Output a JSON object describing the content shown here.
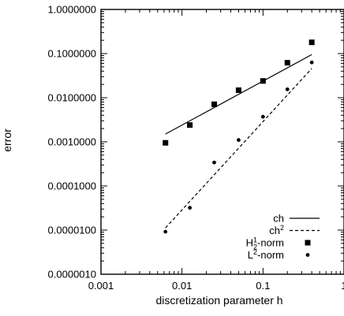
{
  "chart_data": {
    "type": "scatter",
    "title": "",
    "xlabel": "discretization parameter h",
    "ylabel": "error",
    "xscale": "log",
    "yscale": "log",
    "xlim": [
      0.001,
      1
    ],
    "ylim": [
      1e-06,
      1
    ],
    "grid": false,
    "legend_position": "bottom-right",
    "x_ticks": [
      {
        "value": 0.001,
        "label": "0.001"
      },
      {
        "value": 0.01,
        "label": "0.01"
      },
      {
        "value": 0.1,
        "label": "0.1"
      },
      {
        "value": 1,
        "label": "1"
      }
    ],
    "y_ticks": [
      {
        "value": 1e-06,
        "label": "0.0000010"
      },
      {
        "value": 1e-05,
        "label": "0.0000100"
      },
      {
        "value": 0.0001,
        "label": "0.0001000"
      },
      {
        "value": 0.001,
        "label": "0.0010000"
      },
      {
        "value": 0.01,
        "label": "0.0100000"
      },
      {
        "value": 0.1,
        "label": "0.1000000"
      },
      {
        "value": 1,
        "label": "1.0000000"
      }
    ],
    "series": [
      {
        "name": "H1-norm",
        "legend_main": "H",
        "legend_sub": "2",
        "legend_sup": "1",
        "legend_rest": "-norm",
        "kind": "points",
        "marker": "square",
        "x": [
          0.00625,
          0.0125,
          0.025,
          0.05,
          0.1,
          0.2,
          0.4
        ],
        "y": [
          0.00095,
          0.0024,
          0.0071,
          0.0148,
          0.024,
          0.062,
          0.18
        ]
      },
      {
        "name": "L2-norm",
        "legend_main": "L",
        "legend_sup": "2",
        "legend_rest": "-norm",
        "kind": "points",
        "marker": "circle",
        "x": [
          0.00625,
          0.0125,
          0.025,
          0.05,
          0.1,
          0.2,
          0.4
        ],
        "y": [
          9.2e-06,
          3.2e-05,
          0.00034,
          0.0011,
          0.0037,
          0.0155,
          0.063
        ]
      },
      {
        "name": "ch",
        "legend_main": "ch",
        "kind": "line",
        "dash": "solid",
        "x": [
          0.00625,
          0.4
        ],
        "y": [
          0.0015,
          0.095
        ]
      },
      {
        "name": "ch2",
        "legend_main": "ch",
        "legend_sup": "2",
        "kind": "line",
        "dash": "dashed",
        "x": [
          0.00625,
          0.4
        ],
        "y": [
          1.12e-05,
          0.046
        ]
      }
    ]
  }
}
